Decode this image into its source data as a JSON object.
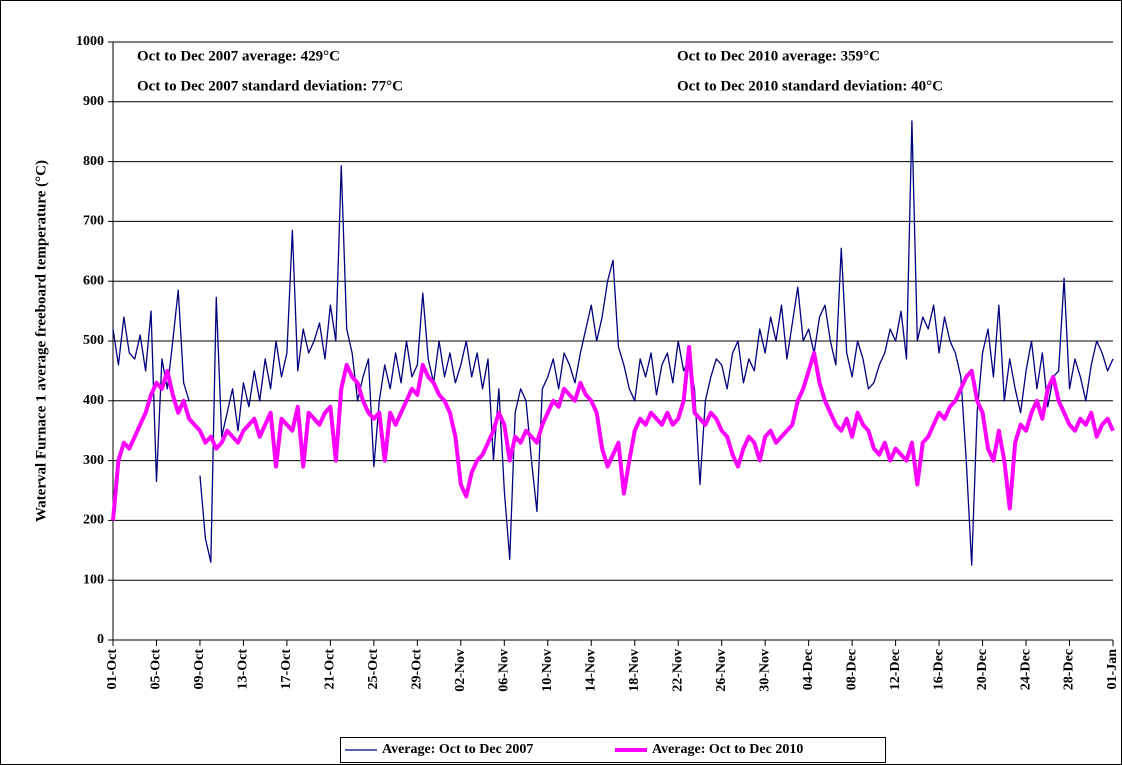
{
  "chart_data": {
    "type": "line",
    "y_label": "Waterval Furnace 1 average freeboard temperature (°C)",
    "annotations": [
      "Oct to Dec 2007 average: 429°C",
      "Oct to Dec 2007 standard deviation: 77°C",
      "Oct to Dec 2010 average: 359°C",
      "Oct to Dec 2010 standard deviation: 40°C"
    ],
    "ylim": [
      0,
      1000
    ],
    "yticks": [
      0,
      100,
      200,
      300,
      400,
      500,
      600,
      700,
      800,
      900,
      1000
    ],
    "xlim": [
      0,
      92
    ],
    "xticks": [
      {
        "value": 0,
        "label": "01-Oct"
      },
      {
        "value": 4,
        "label": "05-Oct"
      },
      {
        "value": 8,
        "label": "09-Oct"
      },
      {
        "value": 12,
        "label": "13-Oct"
      },
      {
        "value": 16,
        "label": "17-Oct"
      },
      {
        "value": 20,
        "label": "21-Oct"
      },
      {
        "value": 24,
        "label": "25-Oct"
      },
      {
        "value": 28,
        "label": "29-Oct"
      },
      {
        "value": 32,
        "label": "02-Nov"
      },
      {
        "value": 36,
        "label": "06-Nov"
      },
      {
        "value": 40,
        "label": "10-Nov"
      },
      {
        "value": 44,
        "label": "14-Nov"
      },
      {
        "value": 48,
        "label": "18-Nov"
      },
      {
        "value": 52,
        "label": "22-Nov"
      },
      {
        "value": 56,
        "label": "26-Nov"
      },
      {
        "value": 60,
        "label": "30-Nov"
      },
      {
        "value": 64,
        "label": "04-Dec"
      },
      {
        "value": 68,
        "label": "08-Dec"
      },
      {
        "value": 72,
        "label": "12-Dec"
      },
      {
        "value": 76,
        "label": "16-Dec"
      },
      {
        "value": 80,
        "label": "20-Dec"
      },
      {
        "value": 84,
        "label": "24-Dec"
      },
      {
        "value": 88,
        "label": "28-Dec"
      },
      {
        "value": 92,
        "label": "01-Jan"
      }
    ],
    "grid": true,
    "legend": "bottom",
    "x": [
      0,
      0.5,
      1,
      1.5,
      2,
      2.5,
      3,
      3.5,
      4,
      4.5,
      5,
      5.5,
      6,
      6.5,
      7,
      7.5,
      8,
      8.5,
      9,
      9.5,
      10,
      10.5,
      11,
      11.5,
      12,
      12.5,
      13,
      13.5,
      14,
      14.5,
      15,
      15.5,
      16,
      16.5,
      17,
      17.5,
      18,
      18.5,
      19,
      19.5,
      20,
      20.5,
      21,
      21.5,
      22,
      22.5,
      23,
      23.5,
      24,
      24.5,
      25,
      25.5,
      26,
      26.5,
      27,
      27.5,
      28,
      28.5,
      29,
      29.5,
      30,
      30.5,
      31,
      31.5,
      32,
      32.5,
      33,
      33.5,
      34,
      34.5,
      35,
      35.5,
      36,
      36.5,
      37,
      37.5,
      38,
      38.5,
      39,
      39.5,
      40,
      40.5,
      41,
      41.5,
      42,
      42.5,
      43,
      43.5,
      44,
      44.5,
      45,
      45.5,
      46,
      46.5,
      47,
      47.5,
      48,
      48.5,
      49,
      49.5,
      50,
      50.5,
      51,
      51.5,
      52,
      52.5,
      53,
      53.5,
      54,
      54.5,
      55,
      55.5,
      56,
      56.5,
      57,
      57.5,
      58,
      58.5,
      59,
      59.5,
      60,
      60.5,
      61,
      61.5,
      62,
      62.5,
      63,
      63.5,
      64,
      64.5,
      65,
      65.5,
      66,
      66.5,
      67,
      67.5,
      68,
      68.5,
      69,
      69.5,
      70,
      70.5,
      71,
      71.5,
      72,
      72.5,
      73,
      73.5,
      74,
      74.5,
      75,
      75.5,
      76,
      76.5,
      77,
      77.5,
      78,
      78.5,
      79,
      79.5,
      80,
      80.5,
      81,
      81.5,
      82,
      82.5,
      83,
      83.5,
      84,
      84.5,
      85,
      85.5,
      86,
      86.5,
      87,
      87.5,
      88,
      88.5,
      89,
      89.5,
      90,
      90.5,
      91,
      91.5,
      92
    ],
    "series": [
      {
        "name": "Average: Oct to Dec 2007",
        "color": "#000080",
        "width": 1.3,
        "values": [
          520,
          460,
          540,
          480,
          470,
          510,
          450,
          550,
          265,
          470,
          420,
          500,
          585,
          430,
          400,
          null,
          275,
          170,
          130,
          573,
          340,
          380,
          420,
          350,
          430,
          390,
          450,
          400,
          470,
          420,
          500,
          440,
          480,
          685,
          450,
          520,
          480,
          500,
          530,
          470,
          560,
          500,
          793,
          520,
          480,
          400,
          440,
          470,
          290,
          400,
          460,
          420,
          480,
          430,
          500,
          440,
          460,
          580,
          470,
          430,
          500,
          440,
          480,
          430,
          460,
          500,
          440,
          480,
          420,
          470,
          300,
          420,
          250,
          135,
          380,
          420,
          400,
          300,
          215,
          420,
          440,
          470,
          420,
          480,
          460,
          430,
          480,
          520,
          560,
          500,
          540,
          600,
          635,
          490,
          460,
          420,
          400,
          470,
          440,
          480,
          410,
          460,
          480,
          430,
          500,
          450,
          470,
          420,
          260,
          400,
          440,
          470,
          460,
          420,
          480,
          500,
          430,
          470,
          450,
          520,
          480,
          540,
          500,
          560,
          470,
          530,
          590,
          500,
          520,
          480,
          540,
          560,
          500,
          460,
          655,
          480,
          440,
          500,
          470,
          420,
          430,
          460,
          480,
          520,
          500,
          550,
          470,
          868,
          500,
          540,
          520,
          560,
          480,
          540,
          500,
          480,
          440,
          300,
          125,
          380,
          480,
          520,
          440,
          560,
          400,
          470,
          420,
          380,
          450,
          500,
          420,
          480,
          390,
          440,
          450,
          605,
          420,
          470,
          440,
          400,
          460,
          500,
          480,
          450,
          470
        ]
      },
      {
        "name": "Average: Oct to Dec 2010",
        "color": "#ff00ff",
        "width": 4,
        "values": [
          200,
          300,
          330,
          320,
          340,
          360,
          380,
          410,
          430,
          420,
          450,
          410,
          380,
          400,
          370,
          360,
          350,
          330,
          340,
          320,
          330,
          350,
          340,
          330,
          350,
          360,
          370,
          340,
          360,
          380,
          290,
          370,
          360,
          350,
          390,
          290,
          380,
          370,
          360,
          380,
          390,
          300,
          420,
          460,
          440,
          430,
          400,
          380,
          370,
          380,
          300,
          380,
          360,
          380,
          400,
          420,
          410,
          460,
          440,
          430,
          410,
          400,
          380,
          340,
          260,
          240,
          280,
          300,
          310,
          330,
          350,
          380,
          360,
          300,
          340,
          330,
          350,
          340,
          330,
          360,
          380,
          400,
          390,
          420,
          410,
          400,
          430,
          410,
          400,
          380,
          320,
          290,
          310,
          330,
          245,
          300,
          350,
          370,
          360,
          380,
          370,
          360,
          380,
          360,
          370,
          400,
          490,
          380,
          370,
          360,
          380,
          370,
          350,
          340,
          310,
          290,
          320,
          340,
          330,
          300,
          340,
          350,
          330,
          340,
          350,
          360,
          400,
          420,
          450,
          480,
          430,
          400,
          380,
          360,
          350,
          370,
          340,
          380,
          360,
          350,
          320,
          310,
          330,
          300,
          320,
          310,
          300,
          330,
          260,
          330,
          340,
          360,
          380,
          370,
          390,
          400,
          420,
          440,
          450,
          400,
          380,
          320,
          300,
          350,
          300,
          220,
          330,
          360,
          350,
          380,
          400,
          370,
          420,
          440,
          400,
          380,
          360,
          350,
          370,
          360,
          380,
          340,
          360,
          370,
          350
        ]
      }
    ]
  }
}
